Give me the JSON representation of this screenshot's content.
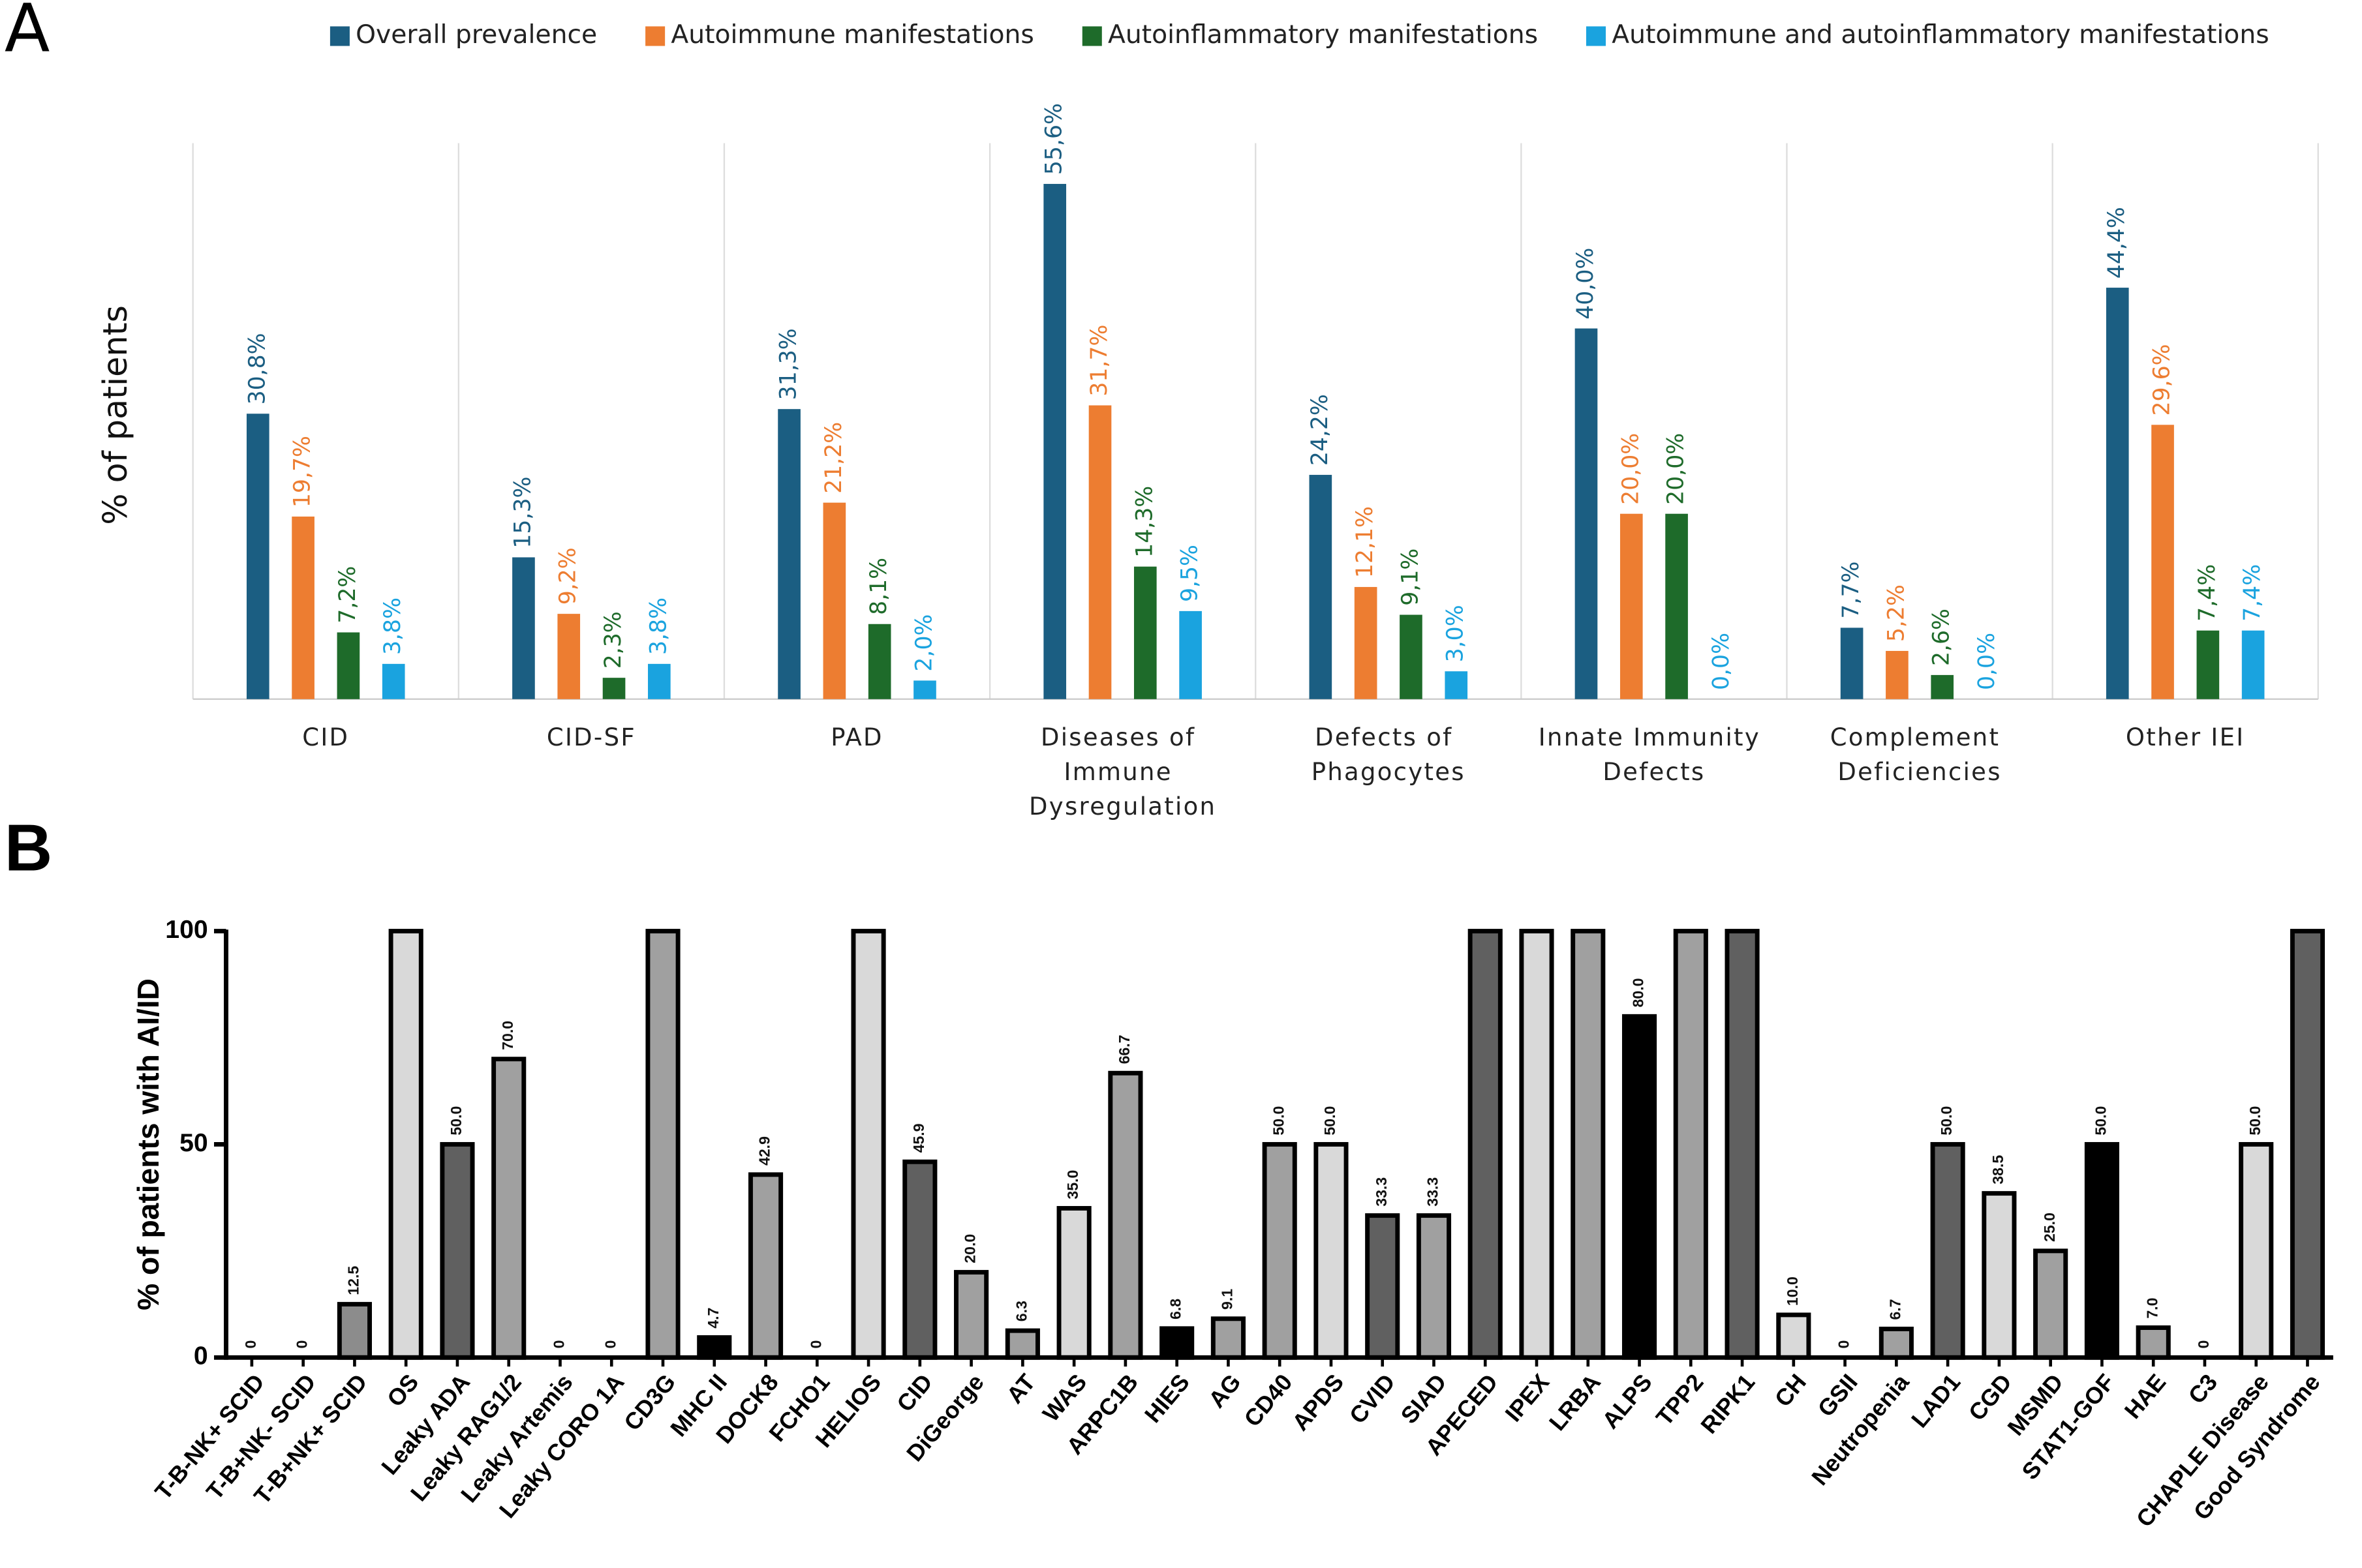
{
  "chart_data": [
    {
      "type": "bar",
      "panel_label": "A",
      "ylabel": "% of patients",
      "legend": "top",
      "categories": [
        "CID",
        "CID-SF",
        "PAD",
        "Diseases of Immune Dysregulation",
        "Defects of Phagocytes",
        "Innate Immunity Defects",
        "Complement Deficiencies",
        "Other IEI"
      ],
      "ylim": [
        0,
        60
      ],
      "series": [
        {
          "name": "Overall prevalence",
          "color": "#1b5e82",
          "values": [
            30.8,
            15.3,
            31.3,
            55.6,
            24.2,
            40.0,
            7.7,
            44.4
          ],
          "value_labels": [
            "30,8%",
            "15,3%",
            "31,3%",
            "55,6%",
            "24,2%",
            "40,0%",
            "7,7%",
            "44,4%"
          ]
        },
        {
          "name": "Autoimmune manifestations",
          "color": "#ed7d31",
          "values": [
            19.7,
            9.2,
            21.2,
            31.7,
            12.1,
            20.0,
            5.2,
            29.6
          ],
          "value_labels": [
            "19,7%",
            "9,2%",
            "21,2%",
            "31,7%",
            "12,1%",
            "20,0%",
            "5,2%",
            "29,6%"
          ]
        },
        {
          "name": "Autoinflammatory manifestations",
          "color": "#1e6b2a",
          "values": [
            7.2,
            2.3,
            8.1,
            14.3,
            9.1,
            20.0,
            2.6,
            7.4
          ],
          "value_labels": [
            "7,2%",
            "2,3%",
            "8,1%",
            "14,3%",
            "9,1%",
            "20,0%",
            "2,6%",
            "7,4%"
          ]
        },
        {
          "name": "Autoimmune and autoinflammatory manifestations",
          "color": "#1aa3df",
          "values": [
            3.8,
            3.8,
            2.0,
            9.5,
            3.0,
            0.0,
            0.0,
            7.4
          ],
          "value_labels": [
            "3,8%",
            "3,8%",
            "2,0%",
            "9,5%",
            "3,0%",
            "0,0%",
            "0,0%",
            "7,4%"
          ]
        }
      ]
    },
    {
      "type": "bar",
      "panel_label": "B",
      "ylabel": "% of patients with AI/ID",
      "edge_color": "#000000",
      "categories": [
        "T-B-NK+ SCID",
        "T-B+NK- SCID",
        "T-B+NK+ SCID",
        "OS",
        "Leaky ADA",
        "Leaky RAG1/2",
        "Leaky Artemis",
        "Leaky CORO 1A",
        "CD3G",
        "MHC II",
        "DOCK8",
        "FCHO1",
        "HELIOS",
        "CID",
        "DiGeorge",
        "AT",
        "WAS",
        "ARPC1B",
        "HIES",
        "AG",
        "CD40",
        "APDS",
        "CVID",
        "SIAD",
        "APECED",
        "IPEX",
        "LRBA",
        "ALPS",
        "TPP2",
        "RIPK1",
        "CH",
        "GSII",
        "Neutropenia",
        "LAD1",
        "CGD",
        "MSMD",
        "STAT1-GOF",
        "HAE",
        "C3",
        "CHAPLE Disease",
        "Good Syndrome"
      ],
      "values": [
        0,
        0,
        12.5,
        100,
        50,
        70,
        0,
        0,
        100,
        4.7,
        42.9,
        0,
        100,
        45.9,
        20,
        6.3,
        35,
        66.7,
        6.8,
        9.1,
        50,
        50,
        33.3,
        33.3,
        100,
        100,
        100,
        80,
        100,
        100,
        10,
        0,
        6.7,
        50,
        38.5,
        25,
        50,
        7,
        0,
        50,
        100
      ],
      "value_labels": [
        "0",
        "0",
        "12.5",
        null,
        "50.0",
        "70.0",
        "0",
        "0",
        null,
        "4.7",
        "42.9",
        "0",
        null,
        "45.9",
        "20.0",
        "6.3",
        "35.0",
        "66.7",
        "6.8",
        "9.1",
        "50.0",
        "50.0",
        "33.3",
        "33.3",
        null,
        null,
        null,
        "80.0",
        null,
        null,
        "10.0",
        "0",
        "6.7",
        "50.0",
        "38.5",
        "25.0",
        "50.0",
        "7.0",
        "0",
        "50.0",
        null
      ],
      "colors": [
        "#a0a0a0",
        "#a0a0a0",
        "#8c8c8c",
        "#d9d9d9",
        "#606060",
        "#a0a0a0",
        "#a0a0a0",
        "#a0a0a0",
        "#a0a0a0",
        "#000000",
        "#a0a0a0",
        "#a0a0a0",
        "#d9d9d9",
        "#606060",
        "#a0a0a0",
        "#a0a0a0",
        "#d9d9d9",
        "#a0a0a0",
        "#000000",
        "#a0a0a0",
        "#a0a0a0",
        "#d9d9d9",
        "#606060",
        "#a0a0a0",
        "#606060",
        "#d9d9d9",
        "#a0a0a0",
        "#000000",
        "#a0a0a0",
        "#606060",
        "#d9d9d9",
        "#a0a0a0",
        "#a0a0a0",
        "#606060",
        "#d9d9d9",
        "#a0a0a0",
        "#000000",
        "#a0a0a0",
        "#a0a0a0",
        "#d9d9d9",
        "#606060"
      ],
      "ylim": [
        0,
        100
      ],
      "yticks": [
        0,
        50,
        100
      ]
    }
  ]
}
